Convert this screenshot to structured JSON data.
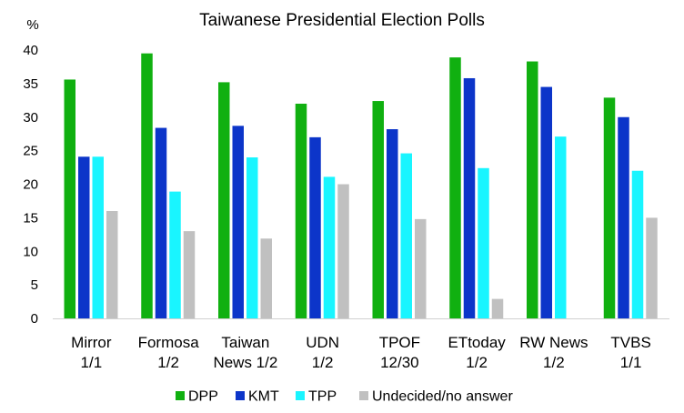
{
  "chart_data": {
    "type": "bar",
    "title": "Taiwanese Presidential Election Polls",
    "yunit": "%",
    "ylim": [
      0,
      40
    ],
    "yticks": [
      0,
      5,
      10,
      15,
      20,
      25,
      30,
      35,
      40
    ],
    "grid": false,
    "legend_position": "bottom",
    "categories": [
      [
        "Mirror",
        "1/1"
      ],
      [
        "Formosa",
        "1/2"
      ],
      [
        "Taiwan",
        "News 1/2"
      ],
      [
        "UDN",
        "1/2"
      ],
      [
        "TPOF",
        "12/30"
      ],
      [
        "ETtoday",
        "1/2"
      ],
      [
        "RW News",
        "1/2"
      ],
      [
        "TVBS",
        "1/1"
      ]
    ],
    "series": [
      {
        "name": "DPP",
        "color": "#10b010",
        "values": [
          35.6,
          39.5,
          35.2,
          32.0,
          32.4,
          38.9,
          38.3,
          32.9
        ]
      },
      {
        "name": "KMT",
        "color": "#0c35c9",
        "values": [
          24.1,
          28.4,
          28.7,
          27.0,
          28.2,
          35.8,
          34.5,
          30.0
        ]
      },
      {
        "name": "TPP",
        "color": "#19f5ff",
        "values": [
          24.1,
          18.9,
          24.0,
          21.1,
          24.6,
          22.4,
          27.1,
          22.0
        ]
      },
      {
        "name": "Undecided/no answer",
        "color": "#c0c0c0",
        "values": [
          16.0,
          13.0,
          11.9,
          20.0,
          14.8,
          2.9,
          null,
          15.0
        ]
      }
    ]
  }
}
